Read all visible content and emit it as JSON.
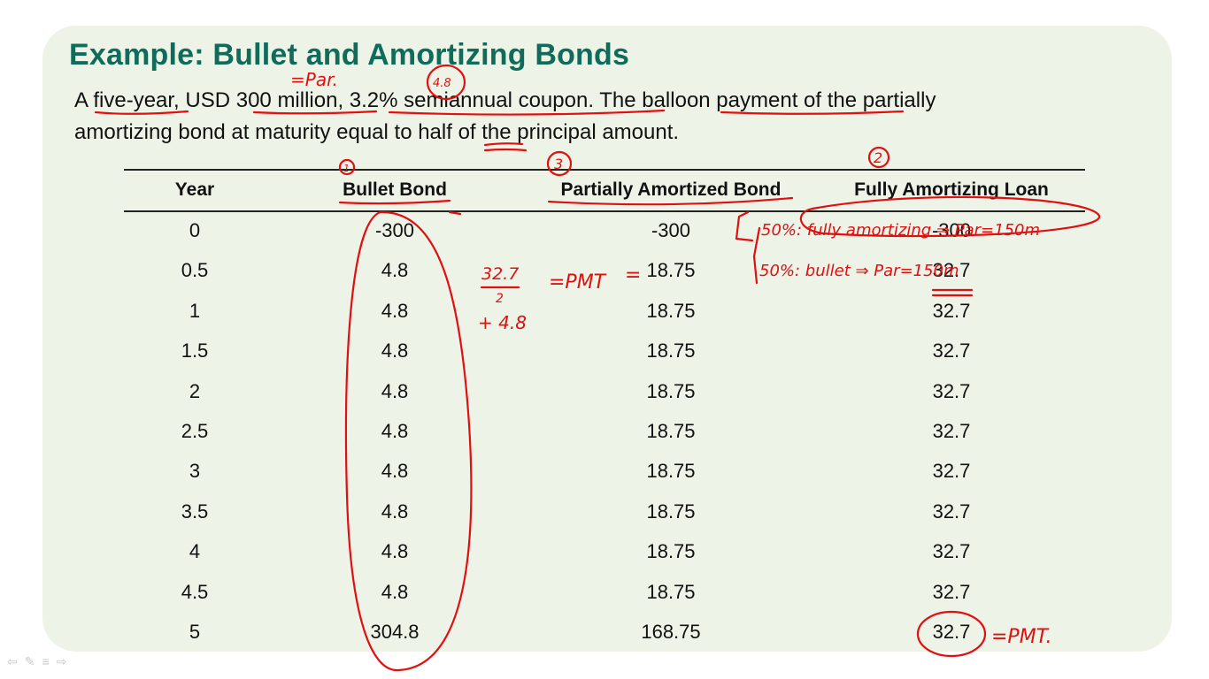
{
  "slide": {
    "title": "Example: Bullet and Amortizing Bonds",
    "paragraph_line1": "A five-year, USD 300 million, 3.2% semiannual coupon. The balloon payment of the partially",
    "paragraph_line2": "amortizing bond at maturity equal to half of the principal amount."
  },
  "table": {
    "headers": [
      "Year",
      "Bullet Bond",
      "Partially Amortized Bond",
      "Fully Amortizing Loan"
    ],
    "rows": [
      [
        "0",
        "-300",
        "-300",
        "-300"
      ],
      [
        "0.5",
        "4.8",
        "18.75",
        "32.7"
      ],
      [
        "1",
        "4.8",
        "18.75",
        "32.7"
      ],
      [
        "1.5",
        "4.8",
        "18.75",
        "32.7"
      ],
      [
        "2",
        "4.8",
        "18.75",
        "32.7"
      ],
      [
        "2.5",
        "4.8",
        "18.75",
        "32.7"
      ],
      [
        "3",
        "4.8",
        "18.75",
        "32.7"
      ],
      [
        "3.5",
        "4.8",
        "18.75",
        "32.7"
      ],
      [
        "4",
        "4.8",
        "18.75",
        "32.7"
      ],
      [
        "4.5",
        "4.8",
        "18.75",
        "32.7"
      ],
      [
        "5",
        "304.8",
        "168.75",
        "32.7"
      ]
    ]
  },
  "annotations": {
    "par_note": "=Par.",
    "coupon_note": "4.8",
    "num1": "1",
    "num2": "2",
    "num3": "3",
    "pmt_calc_top": "32.7",
    "pmt_calc_div": "2",
    "pmt_calc_plus": "+ 4.8",
    "pmt_eq": "=PMT",
    "pmt_eq2": "=",
    "split_a": "50%: fully amortizing ⇒ Par=150m",
    "split_b": "50%: bullet ⇒ Par=150m",
    "pmt_final": "=PMT."
  },
  "colors": {
    "title": "#0f6b5a",
    "ink": "#e01010",
    "slide_bg": "#eef3e8"
  }
}
